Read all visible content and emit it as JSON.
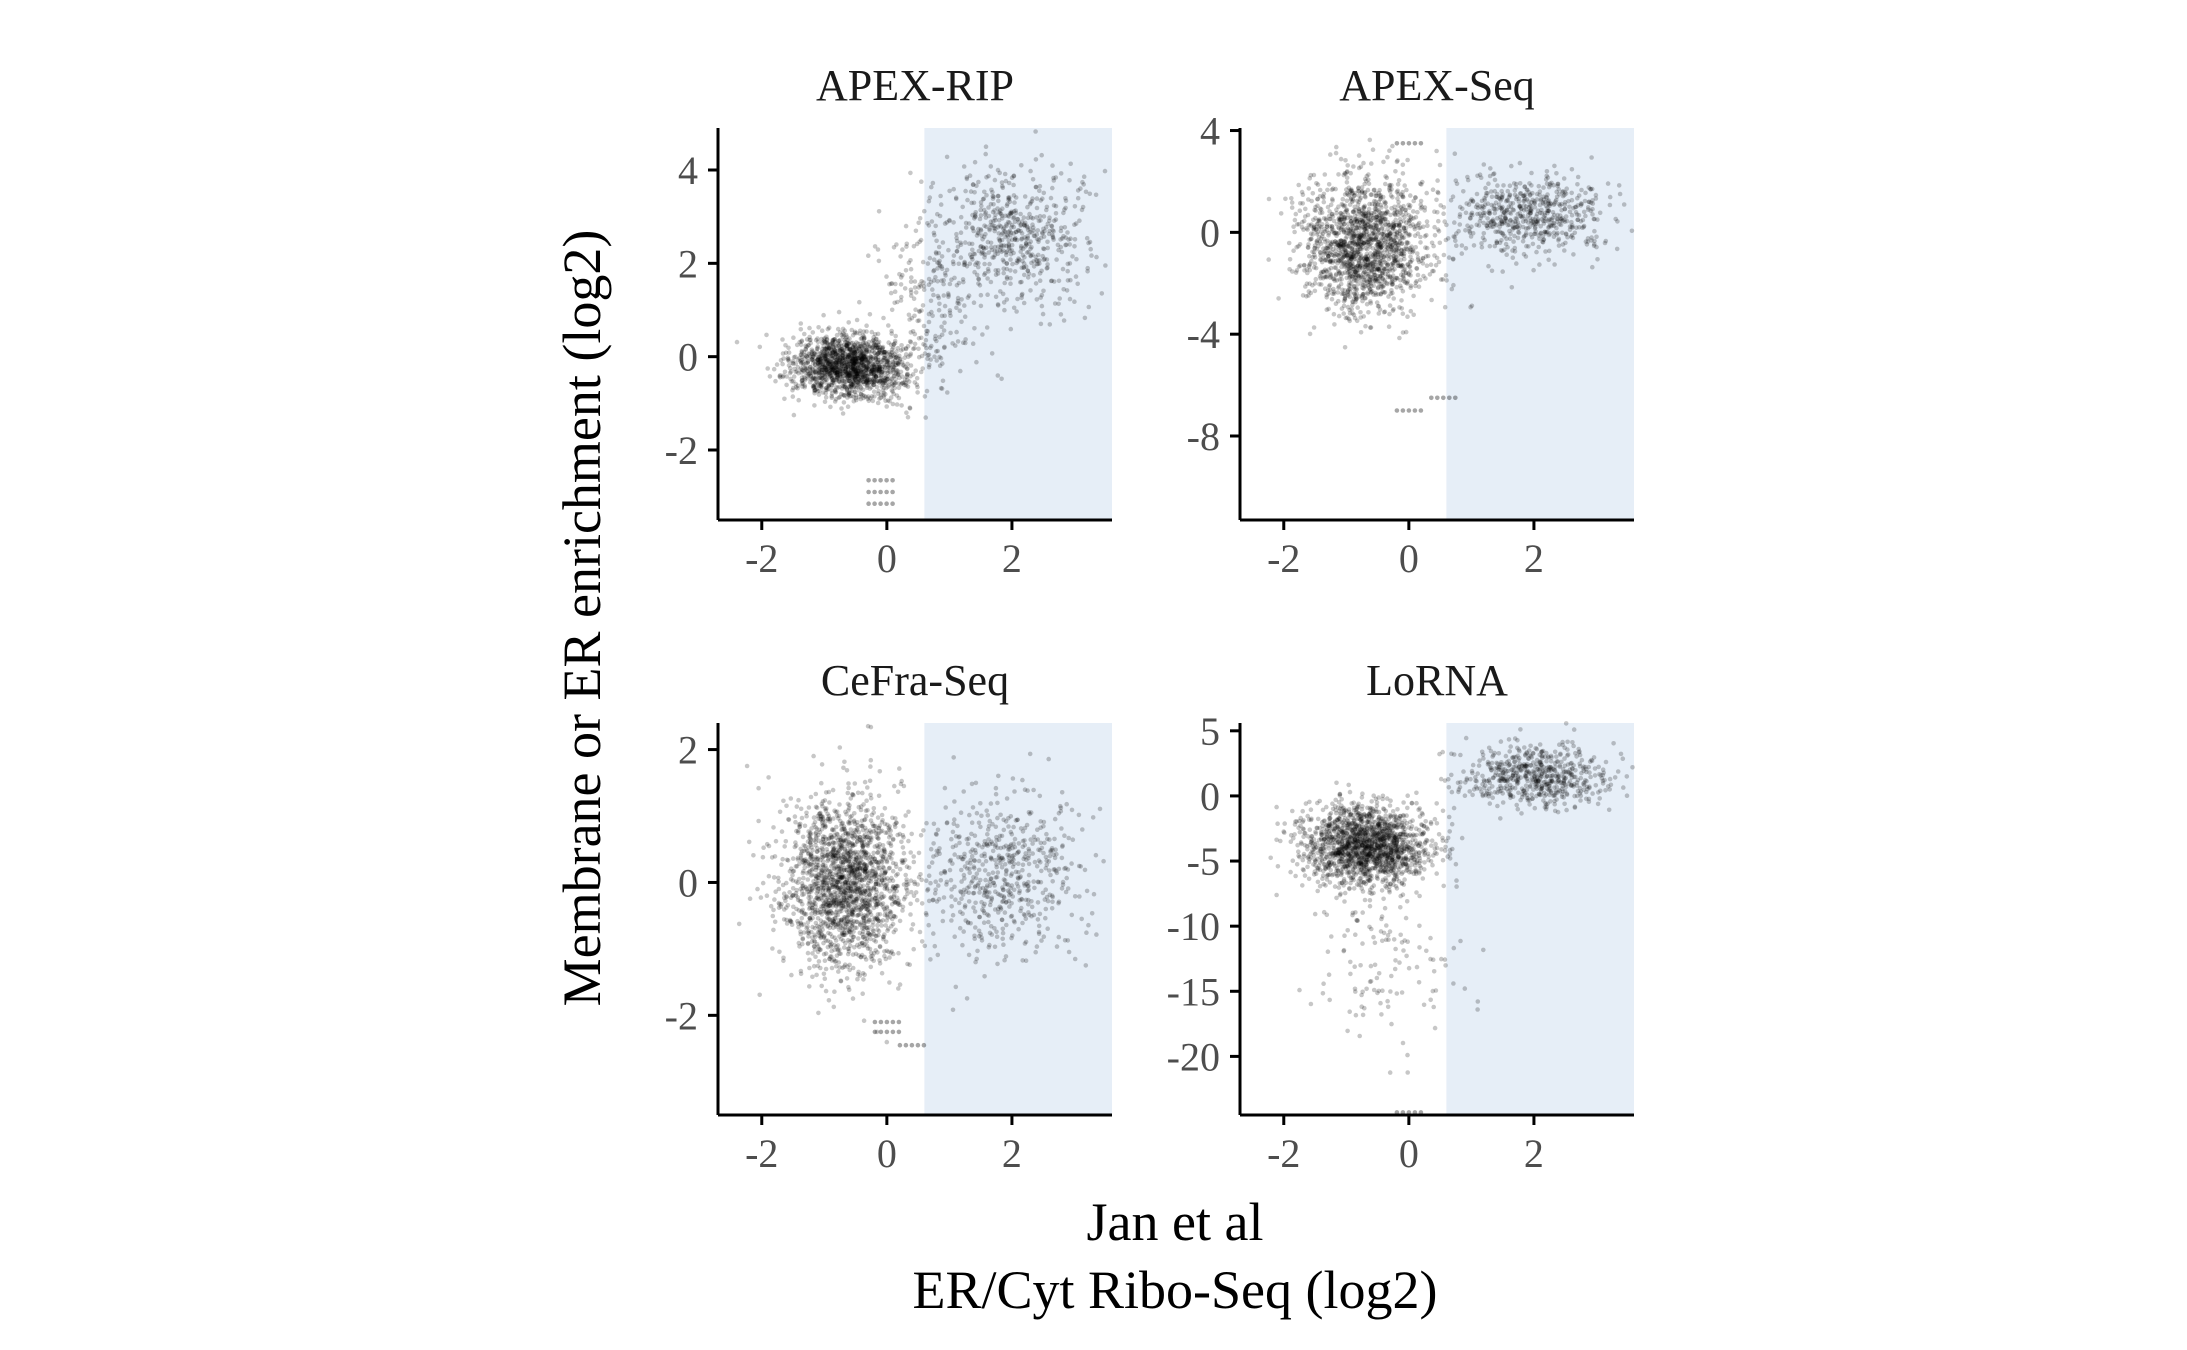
{
  "figure": {
    "ylabel": "Membrane or ER enrichment (log2)",
    "xlabel_line1": "Jan et al",
    "xlabel_line2": "ER/Cyt Ribo-Seq (log2)",
    "point_color": "#000000",
    "highlight_color": "#e6eef7"
  },
  "chart_data": [
    {
      "type": "scatter",
      "title": "APEX-RIP",
      "xlim": [
        -2.7,
        3.6
      ],
      "ylim": [
        -3.5,
        4.9
      ],
      "xticks": [
        -2,
        0,
        2
      ],
      "yticks": [
        -2,
        0,
        2,
        4
      ],
      "xtick_labels": [
        "-2",
        "0",
        "2"
      ],
      "ytick_labels": [
        "-2",
        "0",
        "2",
        "4"
      ],
      "highlight_x_range": [
        0.6,
        3.6
      ],
      "clusters": [
        {
          "n": 1500,
          "cx": -0.6,
          "cy": -0.2,
          "sx": 0.45,
          "sy": 0.35
        },
        {
          "n": 600,
          "cx": 2.0,
          "cy": 2.6,
          "sx": 0.6,
          "sy": 0.75
        },
        {
          "n": 200,
          "cx": 0.7,
          "cy": 1.0,
          "sx": 0.45,
          "sy": 0.9
        }
      ],
      "dashes": [
        {
          "x": -0.1,
          "y": -2.65
        },
        {
          "x": -0.1,
          "y": -2.9
        },
        {
          "x": -0.1,
          "y": -3.15
        }
      ]
    },
    {
      "type": "scatter",
      "title": "APEX-Seq",
      "xlim": [
        -2.7,
        3.6
      ],
      "ylim": [
        -11.3,
        4.1
      ],
      "xticks": [
        -2,
        0,
        2
      ],
      "yticks": [
        -8,
        -4,
        0,
        4
      ],
      "xtick_labels": [
        "-2",
        "0",
        "2"
      ],
      "ytick_labels": [
        "-8",
        "-4",
        "0",
        "4"
      ],
      "highlight_x_range": [
        0.6,
        3.6
      ],
      "clusters": [
        {
          "n": 1600,
          "cx": -0.7,
          "cy": -0.5,
          "sx": 0.5,
          "sy": 1.3
        },
        {
          "n": 600,
          "cx": 1.9,
          "cy": 0.7,
          "sx": 0.65,
          "sy": 0.8
        }
      ],
      "dashes": [
        {
          "x": 0.0,
          "y": 3.5
        },
        {
          "x": 0.0,
          "y": -7.0
        },
        {
          "x": 0.55,
          "y": -6.5
        }
      ]
    },
    {
      "type": "scatter",
      "title": "CeFra-Seq",
      "xlim": [
        -2.7,
        3.6
      ],
      "ylim": [
        -3.5,
        2.4
      ],
      "xticks": [
        -2,
        0,
        2
      ],
      "yticks": [
        -2,
        0,
        2
      ],
      "xtick_labels": [
        "-2",
        "0",
        "2"
      ],
      "ytick_labels": [
        "-2",
        "0",
        "2"
      ],
      "highlight_x_range": [
        0.6,
        3.6
      ],
      "clusters": [
        {
          "n": 1800,
          "cx": -0.7,
          "cy": 0.0,
          "sx": 0.5,
          "sy": 0.65
        },
        {
          "n": 600,
          "cx": 1.8,
          "cy": 0.1,
          "sx": 0.65,
          "sy": 0.6
        }
      ],
      "dashes": [
        {
          "x": 0.0,
          "y": -2.1
        },
        {
          "x": 0.0,
          "y": -2.25
        },
        {
          "x": 0.4,
          "y": -2.45
        }
      ]
    },
    {
      "type": "scatter",
      "title": "LoRNA",
      "xlim": [
        -2.7,
        3.6
      ],
      "ylim": [
        -24.5,
        5.6
      ],
      "xticks": [
        -2,
        0,
        2
      ],
      "yticks": [
        -20,
        -15,
        -10,
        -5,
        0,
        5
      ],
      "xtick_labels": [
        "-2",
        "0",
        "2"
      ],
      "ytick_labels": [
        "-20",
        "-15",
        "-10",
        "-5",
        "0",
        "5"
      ],
      "highlight_x_range": [
        0.6,
        3.6
      ],
      "clusters": [
        {
          "n": 1600,
          "cx": -0.7,
          "cy": -3.8,
          "sx": 0.5,
          "sy": 1.5
        },
        {
          "n": 600,
          "cx": 2.0,
          "cy": 1.6,
          "sx": 0.6,
          "sy": 1.2
        },
        {
          "n": 150,
          "cx": -0.4,
          "cy": -12.0,
          "sx": 0.6,
          "sy": 4.0
        }
      ],
      "dashes": [
        {
          "x": 0.0,
          "y": -24.3
        }
      ]
    }
  ]
}
